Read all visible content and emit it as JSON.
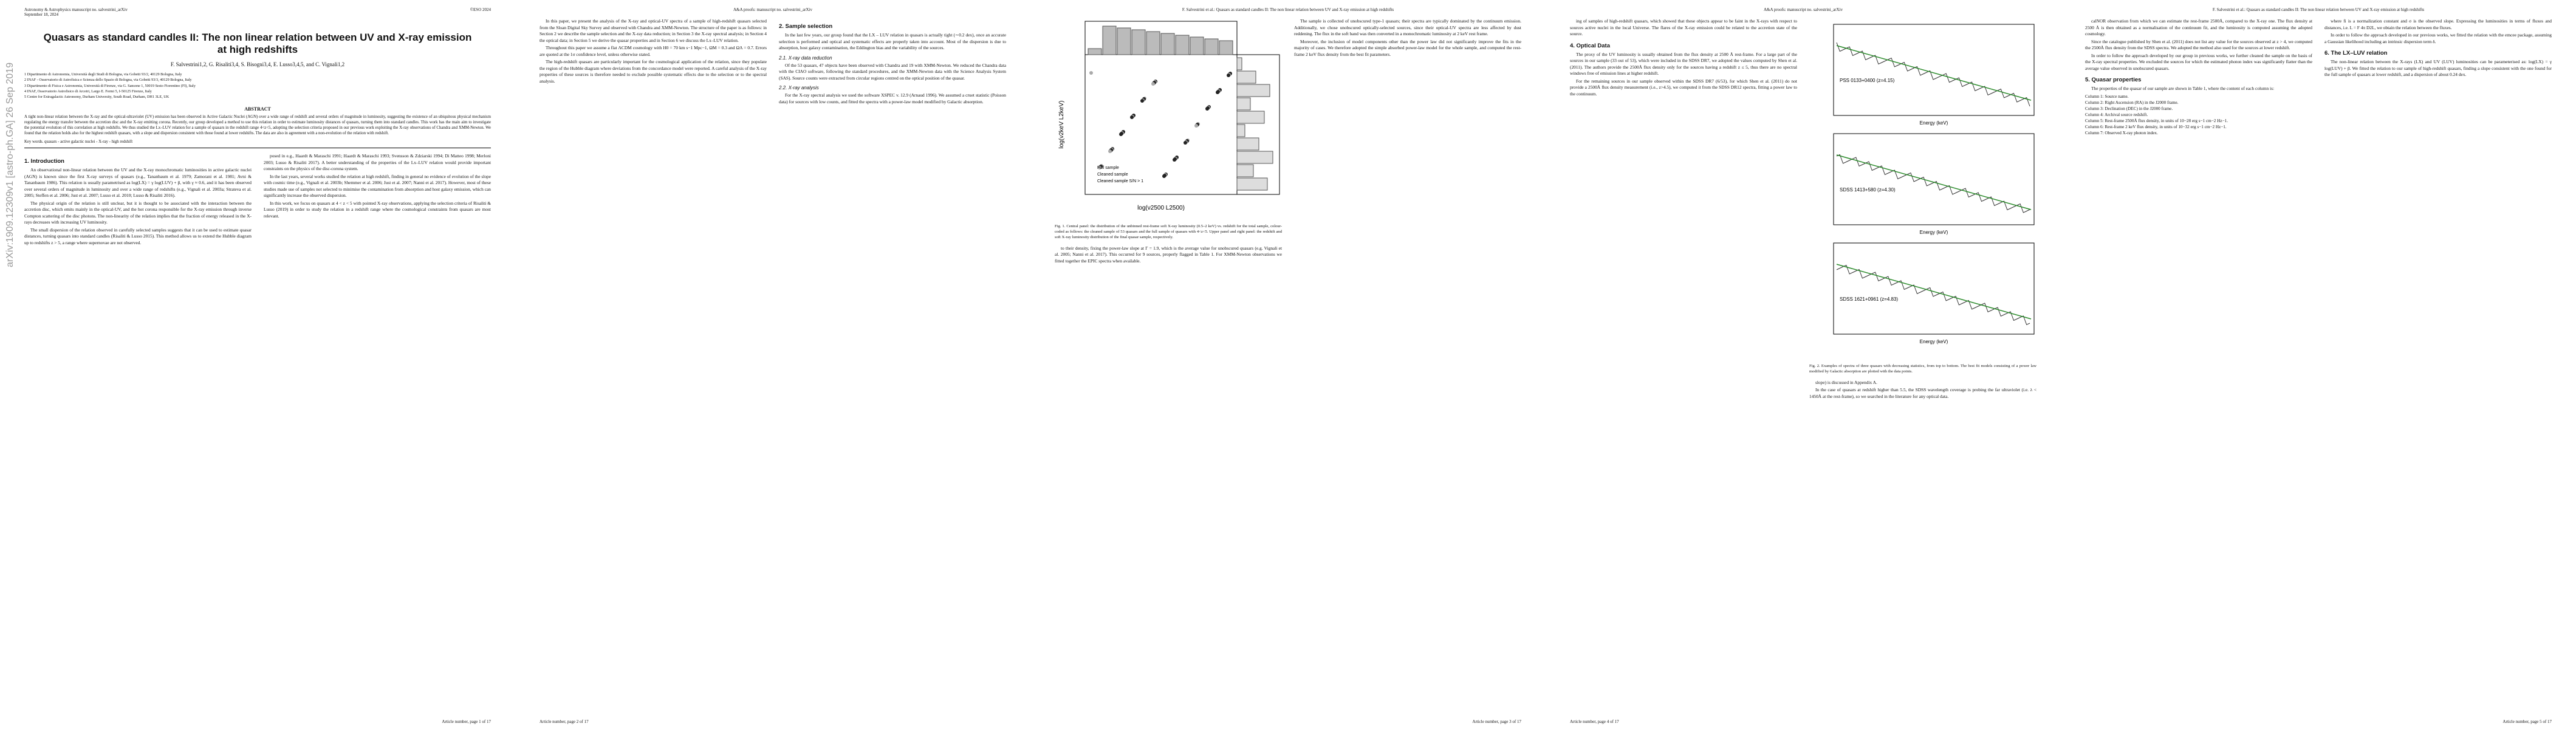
{
  "pages": [
    {
      "header": {
        "left": "Astronomy & Astrophysics manuscript no. salvestrini_arXiv",
        "left2": "September 18, 2024",
        "right": "©ESO 2024"
      },
      "stamp": "arXiv:1909.12309v1  [astro-ph.GA]  26 Sep 2019",
      "footer": "Article number, page 1 of 17",
      "front": {
        "title": "Quasars as standard candles II: The non linear relation between UV and X-ray emission at high redshifts",
        "authors": "F. Salvestrini1,2, G. Risaliti3,4, S. Bisogni3,4, E. Lusso3,4,5, and C. Vignali1,2",
        "affiliations": [
          "1 Dipartimento di Astronomia, Università degli Studi di Bologna, via Gobetti 93/2, 40129 Bologna, Italy",
          "2 INAF - Osservatorio di Astrofisica e Scienza dello Spazio di Bologna, via Gobetti 93/3, 40129 Bologna, Italy",
          "3 Dipartimento di Fisica e Astronomia, Università di Firenze, via G. Sansone 1, 50019 Sesto Fiorentino (FI), Italy",
          "4 INAF, Osservatorio Astrofisico di Arcetri, Largo E. Fermi 5, I-50125 Firenze, Italy",
          "5 Centre for Extragalactic Astronomy, Durham University, South Road, Durham, DH1 3LE, UK"
        ],
        "abstract_heading": "ABSTRACT",
        "abstract": [
          "A tight non-linear relation between the X-ray and the optical-ultraviolet (UV) emission has been observed in Active Galactic Nuclei (AGN) over a wide range of redshift and several orders of magnitude in luminosity, suggesting the existence of an ubiquitous physical mechanism regulating the energy transfer between the accretion disc and the X-ray emitting corona. Recently, our group developed a method to use this relation in order to estimate luminosity distances of quasars, turning them into standard candles. This work has the main aim to investigate the potential evolution of this correlation at high redshifts. We thus studied the Lx–LUV relation for a sample of quasars in the redshift range 4<z<5, adopting the selection criteria proposed in our previous work exploiting the X-ray observations of Chandra and XMM-Newton. We found that the relation holds also for the highest redshift quasars, with a slope and dispersion consistent with those found at lower redshifts. The data are also in agreement with a non-evolution of the relation with redshift."
        ],
        "keywords": "Key words. quasars - active galactic nuclei - X-ray - high redshift"
      },
      "columns": [
        [
          {
            "heading": "1. Introduction"
          },
          {
            "para": "An observational non-linear relation between the UV and the X-ray monochromatic luminosities in active galactic nuclei (AGN) is known since the first X-ray surveys of quasars (e.g., Tananbaum et al. 1979; Zamorani et al. 1981; Avni & Tananbaum 1986). This relation is usually parametrised as log(LX) = γ log(LUV) + β, with γ ≈ 0.6, and it has been observed over several orders of magnitude in luminosity and over a wide range of redshifts (e.g., Vignali et al. 2003a; Strateva et al. 2005; Steffen et al. 2006; Just et al. 2007; Lusso et al. 2010; Lusso & Risaliti 2016)."
          },
          {
            "para": "The physical origin of the relation is still unclear, but it is thought to be associated with the interaction between the accretion disc, which emits mainly in the optical-UV, and the hot corona responsible for the X-ray emission through inverse Compton scattering of the disc photons. The non-linearity of the relation implies that the fraction of energy released in the X-rays decreases with increasing UV luminosity."
          },
          {
            "para": "The small dispersion of the relation observed in carefully selected samples suggests that it can be used to estimate quasar distances, turning quasars into standard candles (Risaliti & Lusso 2015). This method allows us to extend the Hubble diagram up to redshifts z > 5, a range where supernovae are not observed."
          }
        ],
        [
          {
            "para": "posed in e.g., Haardt & Maraschi 1991; Haardt & Maraschi 1993; Svensson & Zdziarski 1994; Di Matteo 1998; Merloni 2003; Lusso & Risaliti 2017). A better understanding of the properties of the Lx–LUV relation would provide important constraints on the physics of the disc-corona system."
          },
          {
            "para": "In the last years, several works studied the relation at high redshift, finding in general no evidence of evolution of the slope with cosmic time (e.g., Vignali et al. 2003b; Shemmer et al. 2006; Just et al. 2007; Nanni et al. 2017). However, most of these studies made use of samples not selected to minimise the contamination from absorption and host galaxy emission, which can significantly increase the observed dispersion."
          },
          {
            "para": "In this work, we focus on quasars at 4 < z < 5 with pointed X-ray observations, applying the selection criteria of Risaliti & Lusso (2019) in order to study the relation in a redshift range where the cosmological constraints from quasars are most relevant."
          }
        ]
      ]
    },
    {
      "header": {
        "center": "A&A proofs: manuscript no. salvestrini_arXiv"
      },
      "footer": "Article number, page 2 of 17",
      "columns": [
        [
          {
            "para": "In this paper, we present the analysis of the X-ray and optical-UV spectra of a sample of high-redshift quasars selected from the Sloan Digital Sky Survey and observed with Chandra and XMM-Newton. The structure of the paper is as follows: in Section 2 we describe the sample selection and the X-ray data reduction; in Section 3 the X-ray spectral analysis; in Section 4 the optical data; in Section 5 we derive the quasar properties and in Section 6 we discuss the Lx–LUV relation."
          },
          {
            "para": "Throughout this paper we assume a flat ΛCDM cosmology with H0 = 70 km s−1 Mpc−1, ΩM = 0.3 and ΩΛ = 0.7. Errors are quoted at the 1σ confidence level, unless otherwise stated."
          },
          {
            "para": "The high-redshift quasars are particularly important for the cosmological application of the relation, since they populate the region of the Hubble diagram where deviations from the concordance model were reported. A careful analysis of the X-ray properties of these sources is therefore needed to exclude possible systematic effects due to the selection or to the spectral analysis."
          }
        ],
        [
          {
            "heading": "2. Sample selection"
          },
          {
            "para": "In the last few years, our group found that the LX – LUV relation in quasars is actually tight (∼0.2 dex), once an accurate selection is performed and optical and systematic effects are properly taken into account. Most of the dispersion is due to absorption, host galaxy contamination, the Eddington bias and the variability of the sources."
          },
          {
            "heading": "2.1. X-ray data reduction",
            "level": 3
          },
          {
            "para": "Of the 53 quasars, 47 objects have been observed with Chandra and 19 with XMM-Newton. We reduced the Chandra data with the CIAO software, following the standard procedures, and the XMM-Newton data with the Science Analysis System (SAS). Source counts were extracted from circular regions centred on the optical position of the quasar."
          },
          {
            "heading": "2.2. X-ray analysis",
            "level": 3
          },
          {
            "para": "For the X-ray spectral analysis we used the software XSPEC v. 12.9 (Arnaud 1996). We assumed a cruet statistic (Poisson data) for sources with low counts, and fitted the spectra with a power-law model modified by Galactic absorption."
          }
        ]
      ]
    },
    {
      "header": {
        "center": "F. Salvestrini et al.: Quasars as standard candles II: The non linear relation between UV and X-ray emission at high redshifts"
      },
      "footer": "Article number, page 3 of 17",
      "columns": [
        [
          {
            "figure": {
              "kind": "scatter",
              "labels": [
                "log(ν2keV L2keV)",
                "log(ν2500 L2500)",
                "Full sample",
                "Cleaned sample",
                "Cleaned sample S/N > 1"
              ],
              "caption": "Fig. 1. Central panel: the distribution of the unbinned rest-frame soft X-ray luminosity (0.5–2 keV) vs. redshift for the total sample, colour-coded as follows: the cleaned sample of 53 quasars and the full sample of quasars with 4<z<5. Upper panel and right panel: the redshift and soft X-ray luminosity distribution of the final quasar sample, respectively."
            }
          },
          {
            "para": "to their density, fixing the power-law slope at Γ = 1.9, which is the average value for unobscured quasars (e.g. Vignali et al. 2005; Nanni et al. 2017). This occurred for 9 sources, properly flagged in Table 1. For XMM-Newton observations we fitted together the EPIC spectra when available."
          }
        ],
        [
          {
            "para": "The sample is collected of unobscured type-1 quasars; their spectra are typically dominated by the continuum emission. Additionally, we chose unobscured optically-selected sources, since their optical-UV spectra are less affected by dust reddening. The flux in the soft band was then converted in a monochromatic luminosity at 2 keV rest frame."
          },
          {
            "para": "Moreover, the inclusion of model components other than the power law did not significantly improve the fits in the majority of cases. We therefore adopted the simple absorbed power-law model for the whole sample, and computed the rest-frame 2 keV flux density from the best fit parameters."
          }
        ]
      ]
    },
    {
      "header": {
        "center": "A&A proofs: manuscript no. salvestrini_arXiv"
      },
      "footer": "Article number, page 4 of 17",
      "columns": [
        [
          {
            "para": "ing of samples of high-redshift quasars, which showed that these objects appear to be faint in the X-rays with respect to sources active nuclei in the local Universe. The flares of the X-ray emission could be related to the accretion state of the source."
          },
          {
            "heading": "4. Optical Data"
          },
          {
            "para": "The proxy of the UV luminosity is usually obtained from the flux density at 2500 Å rest-frame. For a large part of the sources in our sample (33 out of 53), which were included in the SDSS DR7, we adopted the values computed by Shen et al. (2011). The authors provide the 2500Å flux density only for the sources having a redshift z ≤ 5, thus there are no spectral windows free of emission lines at higher redshift."
          },
          {
            "para": "For the remaining sources in our sample observed within the SDSS DR7 (6/53), for which Shen et al. (2011) do not provide a 2500Å flux density measurement (i.e., z>4.5), we computed it from the SDSS DR12 spectra, fitting a power law to the continuum."
          }
        ],
        [
          {
            "figure": {
              "kind": "spectra",
              "labels": [
                "PSS 0133+0400 (z=4.15)",
                "SDSS 1413+580 (z=4.30)",
                "SDSS 1621+0961 (z=4.83)",
                "Energy (keV)"
              ],
              "caption": "Fig. 2. Examples of spectra of three quasars with decreasing statistics, from top to bottom. The best fit models consisting of a power law modified by Galactic absorption are plotted with the data points."
            }
          },
          {
            "para": "slope) is discussed in Appendix A."
          },
          {
            "para": "In the case of quasars at redshift higher than 5.5, the SDSS wavelength coverage is probing the far ultraviolet (i.e. λ < 1450Å at the rest-frame), so we searched in the literature for any optical data."
          }
        ]
      ]
    },
    {
      "header": {
        "center": "F. Salvestrini et al.: Quasars as standard candles II: The non linear relation between UV and X-ray emission at high redshifts"
      },
      "footer": "Article number, page 5 of 17",
      "columns": [
        [
          {
            "para": "calNOR observation from which we can estimate the rest-frame 2500Å, compared to the X-ray one. The flux density at 2500 Å is then obtained as a normalisation of the continuum fit, and the luminosity is computed assuming the adopted cosmology."
          },
          {
            "para": "Since the catalogue published by Shen et al. (2011) does not list any value for the sources observed at z > 4, we computed the 2500Å flux density from the SDSS spectra. We adopted the method also used for the sources at lower redshift."
          },
          {
            "para": "In order to follow the approach developed by our group in previous works, we further cleaned the sample on the basis of the X-ray spectral properties. We excluded the sources for which the estimated photon index was significantly flatter than the average value observed in unobscured quasars."
          },
          {
            "heading": "5. Quasar properties"
          },
          {
            "para": "The properties of the quasar of our sample are shown in Table 1, where the content of each column is:"
          },
          {
            "list": [
              "Column 1: Source name.",
              "Column 2: Right Ascension (RA) in the J2000 frame.",
              "Column 3: Declination (DEC) in the J2000 frame.",
              "Column 4: Archival source redshift.",
              "Column 5: Rest-frame 2500Å flux density, in units of 10−28 erg s−1 cm−2 Hz−1.",
              "Column 6: Rest-frame 2 keV flux density, in units of 10−32 erg s−1 cm−2 Hz−1.",
              "Column 7: Observed X-ray photon index."
            ]
          }
        ],
        [
          {
            "para": "where fi is a normalization constant and σ is the observed slope. Expressing the luminosities in terms of fluxes and distances, i.e. L = F 4π D2L, we obtain the relation between the fluxes."
          },
          {
            "para": "In order to follow the approach developed in our previous works, we fitted the relation with the emcee package, assuming a Gaussian likelihood including an intrinsic dispersion term δ."
          },
          {
            "heading": "6. The LX–LUV relation"
          },
          {
            "para": "The non-linear relation between the X-rays (LX) and UV (LUV) luminosities can be parameterised as: log(LX) = γ log(LUV) + β. We fitted the relation to our sample of high-redshift quasars, finding a slope consistent with the one found for the full sample of quasars at lower redshift, and a dispersion of about 0.24 dex."
          }
        ]
      ]
    }
  ]
}
